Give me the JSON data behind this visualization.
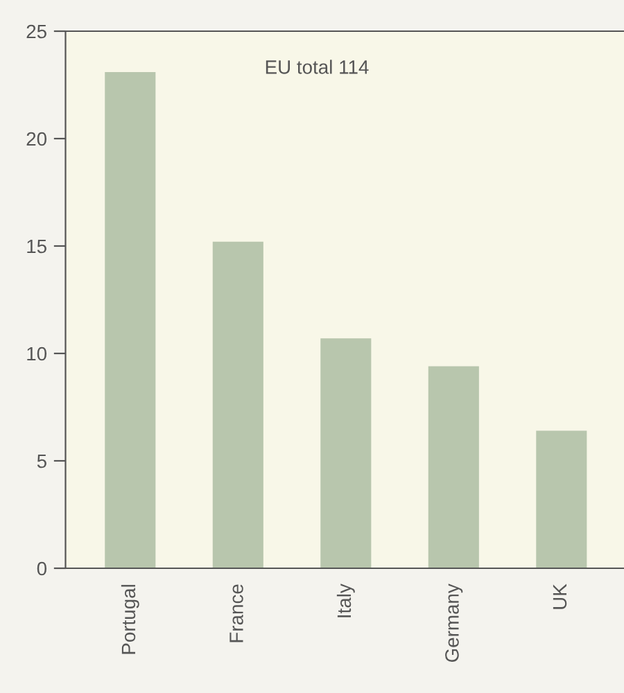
{
  "chart_data": {
    "type": "bar",
    "categories": [
      "Portugal",
      "France",
      "Italy",
      "Germany",
      "UK"
    ],
    "values": [
      23.1,
      15.2,
      10.7,
      9.4,
      6.4
    ],
    "color": "#b8c6ad",
    "ylim": [
      0,
      25
    ],
    "yticks": [
      0,
      5,
      10,
      15,
      20,
      25
    ],
    "annotations": [
      "EU total 114"
    ],
    "grid": false,
    "legend": false
  }
}
